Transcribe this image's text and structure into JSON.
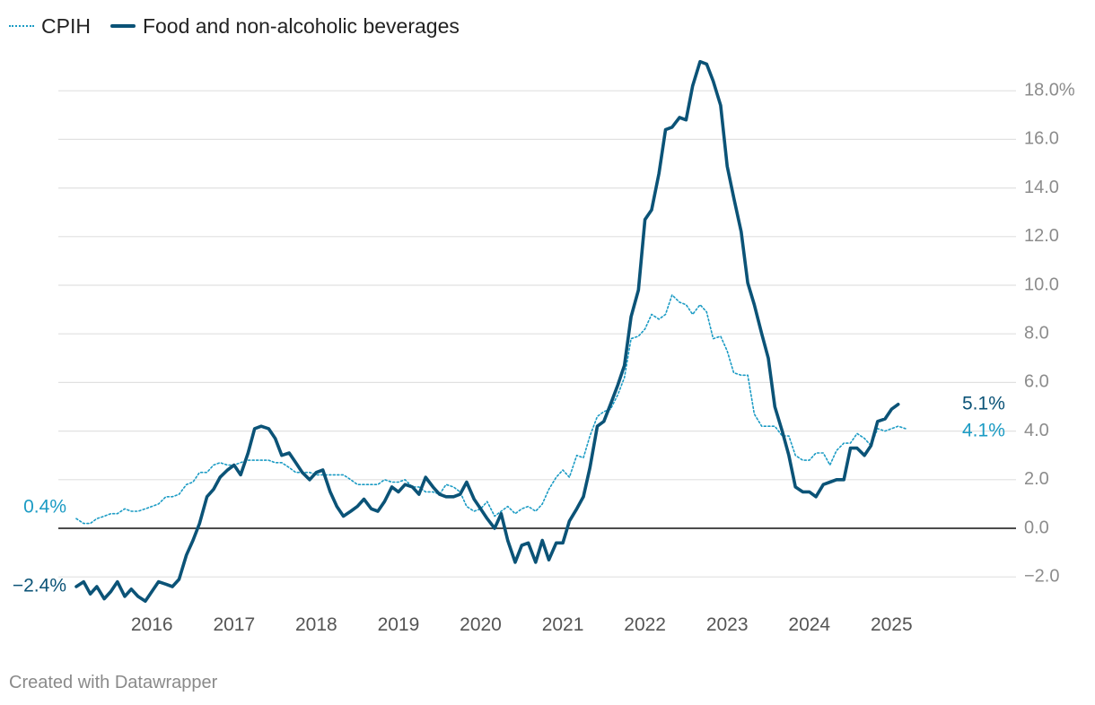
{
  "legend": [
    {
      "name": "CPIH",
      "style": "dotted",
      "color": "#1b9bc4"
    },
    {
      "name": "Food and non-alcoholic beverages",
      "style": "solid",
      "color": "#0b5377"
    }
  ],
  "credit": "Created with Datawrapper",
  "chart_data": {
    "type": "line",
    "title": "",
    "xlabel": "",
    "ylabel": "",
    "x_unit": "year",
    "xlim": [
      2015.58,
      2026.25
    ],
    "ylim": [
      -3.2,
      19.5
    ],
    "x_ticks": [
      2016,
      2017,
      2018,
      2019,
      2020,
      2021,
      2022,
      2023,
      2024,
      2025
    ],
    "x_tick_labels": [
      "2016",
      "2017",
      "2018",
      "2019",
      "2020",
      "2021",
      "2022",
      "2023",
      "2024",
      "2025"
    ],
    "y_ticks": [
      -2,
      0,
      2,
      4,
      6,
      8,
      10,
      12,
      14,
      16,
      18
    ],
    "y_tick_labels": [
      "−2.0",
      "0.0",
      "2.0",
      "4.0",
      "6.0",
      "8.0",
      "10.0",
      "12.0",
      "14.0",
      "16.0",
      "18.0%"
    ],
    "zero_line": true,
    "grid": "horizontal",
    "legend_position": "top-left",
    "series": [
      {
        "name": "CPIH",
        "style": "dotted",
        "color": "#1b9bc4",
        "start_label": "0.4%",
        "end_label": "4.1%",
        "points": [
          [
            2015.58,
            0.4
          ],
          [
            2015.67,
            0.2
          ],
          [
            2015.75,
            0.2
          ],
          [
            2015.83,
            0.4
          ],
          [
            2015.92,
            0.5
          ],
          [
            2016.0,
            0.6
          ],
          [
            2016.08,
            0.6
          ],
          [
            2016.17,
            0.8
          ],
          [
            2016.25,
            0.7
          ],
          [
            2016.33,
            0.7
          ],
          [
            2016.42,
            0.8
          ],
          [
            2016.5,
            0.9
          ],
          [
            2016.58,
            1.0
          ],
          [
            2016.67,
            1.3
          ],
          [
            2016.75,
            1.3
          ],
          [
            2016.83,
            1.4
          ],
          [
            2016.92,
            1.8
          ],
          [
            2017.0,
            1.9
          ],
          [
            2017.08,
            2.3
          ],
          [
            2017.17,
            2.3
          ],
          [
            2017.25,
            2.6
          ],
          [
            2017.33,
            2.7
          ],
          [
            2017.42,
            2.6
          ],
          [
            2017.5,
            2.6
          ],
          [
            2017.58,
            2.7
          ],
          [
            2017.67,
            2.8
          ],
          [
            2017.75,
            2.8
          ],
          [
            2017.83,
            2.8
          ],
          [
            2017.92,
            2.8
          ],
          [
            2018.0,
            2.7
          ],
          [
            2018.08,
            2.7
          ],
          [
            2018.17,
            2.5
          ],
          [
            2018.25,
            2.3
          ],
          [
            2018.33,
            2.3
          ],
          [
            2018.42,
            2.3
          ],
          [
            2018.5,
            2.2
          ],
          [
            2018.58,
            2.2
          ],
          [
            2018.67,
            2.2
          ],
          [
            2018.75,
            2.2
          ],
          [
            2018.83,
            2.2
          ],
          [
            2018.92,
            2.0
          ],
          [
            2019.0,
            1.8
          ],
          [
            2019.08,
            1.8
          ],
          [
            2019.17,
            1.8
          ],
          [
            2019.25,
            1.8
          ],
          [
            2019.33,
            2.0
          ],
          [
            2019.42,
            1.9
          ],
          [
            2019.5,
            1.9
          ],
          [
            2019.58,
            2.0
          ],
          [
            2019.67,
            1.7
          ],
          [
            2019.75,
            1.7
          ],
          [
            2019.83,
            1.5
          ],
          [
            2019.92,
            1.5
          ],
          [
            2020.0,
            1.4
          ],
          [
            2020.08,
            1.8
          ],
          [
            2020.17,
            1.7
          ],
          [
            2020.25,
            1.5
          ],
          [
            2020.33,
            0.9
          ],
          [
            2020.42,
            0.7
          ],
          [
            2020.5,
            0.8
          ],
          [
            2020.58,
            1.1
          ],
          [
            2020.67,
            0.5
          ],
          [
            2020.75,
            0.7
          ],
          [
            2020.83,
            0.9
          ],
          [
            2020.92,
            0.6
          ],
          [
            2021.0,
            0.8
          ],
          [
            2021.08,
            0.9
          ],
          [
            2021.17,
            0.7
          ],
          [
            2021.25,
            1.0
          ],
          [
            2021.33,
            1.6
          ],
          [
            2021.42,
            2.1
          ],
          [
            2021.5,
            2.4
          ],
          [
            2021.58,
            2.1
          ],
          [
            2021.67,
            3.0
          ],
          [
            2021.75,
            2.9
          ],
          [
            2021.83,
            3.8
          ],
          [
            2021.92,
            4.6
          ],
          [
            2022.0,
            4.8
          ],
          [
            2022.08,
            4.9
          ],
          [
            2022.17,
            5.5
          ],
          [
            2022.25,
            6.2
          ],
          [
            2022.33,
            7.8
          ],
          [
            2022.42,
            7.9
          ],
          [
            2022.5,
            8.2
          ],
          [
            2022.58,
            8.8
          ],
          [
            2022.67,
            8.6
          ],
          [
            2022.75,
            8.8
          ],
          [
            2022.83,
            9.6
          ],
          [
            2022.92,
            9.3
          ],
          [
            2023.0,
            9.2
          ],
          [
            2023.08,
            8.8
          ],
          [
            2023.17,
            9.2
          ],
          [
            2023.25,
            8.9
          ],
          [
            2023.33,
            7.8
          ],
          [
            2023.42,
            7.9
          ],
          [
            2023.5,
            7.3
          ],
          [
            2023.58,
            6.4
          ],
          [
            2023.67,
            6.3
          ],
          [
            2023.75,
            6.3
          ],
          [
            2023.83,
            4.7
          ],
          [
            2023.92,
            4.2
          ],
          [
            2024.0,
            4.2
          ],
          [
            2024.08,
            4.2
          ],
          [
            2024.17,
            3.8
          ],
          [
            2024.25,
            3.8
          ],
          [
            2024.33,
            3.0
          ],
          [
            2024.42,
            2.8
          ],
          [
            2024.5,
            2.8
          ],
          [
            2024.58,
            3.1
          ],
          [
            2024.67,
            3.1
          ],
          [
            2024.75,
            2.6
          ],
          [
            2024.83,
            3.2
          ],
          [
            2024.92,
            3.5
          ],
          [
            2025.0,
            3.5
          ],
          [
            2025.08,
            3.9
          ],
          [
            2025.17,
            3.7
          ],
          [
            2025.25,
            3.4
          ],
          [
            2025.33,
            4.1
          ],
          [
            2025.42,
            4.0
          ],
          [
            2025.5,
            4.1
          ],
          [
            2025.58,
            4.2
          ],
          [
            2025.67,
            4.1
          ]
        ]
      },
      {
        "name": "Food and non-alcoholic beverages",
        "style": "solid",
        "color": "#0b5377",
        "start_label": "−2.4%",
        "end_label": "5.1%",
        "points": [
          [
            2015.58,
            -2.4
          ],
          [
            2015.67,
            -2.2
          ],
          [
            2015.75,
            -2.7
          ],
          [
            2015.83,
            -2.4
          ],
          [
            2015.92,
            -2.9
          ],
          [
            2016.0,
            -2.6
          ],
          [
            2016.08,
            -2.2
          ],
          [
            2016.17,
            -2.8
          ],
          [
            2016.25,
            -2.5
          ],
          [
            2016.33,
            -2.8
          ],
          [
            2016.42,
            -3.0
          ],
          [
            2016.5,
            -2.6
          ],
          [
            2016.58,
            -2.2
          ],
          [
            2016.67,
            -2.3
          ],
          [
            2016.75,
            -2.4
          ],
          [
            2016.83,
            -2.1
          ],
          [
            2016.92,
            -1.1
          ],
          [
            2017.0,
            -0.5
          ],
          [
            2017.08,
            0.2
          ],
          [
            2017.17,
            1.3
          ],
          [
            2017.25,
            1.6
          ],
          [
            2017.33,
            2.1
          ],
          [
            2017.42,
            2.4
          ],
          [
            2017.5,
            2.6
          ],
          [
            2017.58,
            2.2
          ],
          [
            2017.67,
            3.1
          ],
          [
            2017.75,
            4.1
          ],
          [
            2017.83,
            4.2
          ],
          [
            2017.92,
            4.1
          ],
          [
            2018.0,
            3.7
          ],
          [
            2018.08,
            3.0
          ],
          [
            2018.17,
            3.1
          ],
          [
            2018.25,
            2.7
          ],
          [
            2018.33,
            2.3
          ],
          [
            2018.42,
            2.0
          ],
          [
            2018.5,
            2.3
          ],
          [
            2018.58,
            2.4
          ],
          [
            2018.67,
            1.5
          ],
          [
            2018.75,
            0.9
          ],
          [
            2018.83,
            0.5
          ],
          [
            2018.92,
            0.7
          ],
          [
            2019.0,
            0.9
          ],
          [
            2019.08,
            1.2
          ],
          [
            2019.17,
            0.8
          ],
          [
            2019.25,
            0.7
          ],
          [
            2019.33,
            1.1
          ],
          [
            2019.42,
            1.7
          ],
          [
            2019.5,
            1.5
          ],
          [
            2019.58,
            1.8
          ],
          [
            2019.67,
            1.7
          ],
          [
            2019.75,
            1.4
          ],
          [
            2019.83,
            2.1
          ],
          [
            2019.92,
            1.7
          ],
          [
            2020.0,
            1.4
          ],
          [
            2020.08,
            1.3
          ],
          [
            2020.17,
            1.3
          ],
          [
            2020.25,
            1.4
          ],
          [
            2020.33,
            1.9
          ],
          [
            2020.42,
            1.2
          ],
          [
            2020.5,
            0.8
          ],
          [
            2020.58,
            0.4
          ],
          [
            2020.67,
            0.0
          ],
          [
            2020.75,
            0.6
          ],
          [
            2020.83,
            -0.5
          ],
          [
            2020.92,
            -1.4
          ],
          [
            2021.0,
            -0.7
          ],
          [
            2021.08,
            -0.6
          ],
          [
            2021.17,
            -1.4
          ],
          [
            2021.25,
            -0.5
          ],
          [
            2021.33,
            -1.3
          ],
          [
            2021.42,
            -0.6
          ],
          [
            2021.5,
            -0.6
          ],
          [
            2021.58,
            0.3
          ],
          [
            2021.67,
            0.8
          ],
          [
            2021.75,
            1.3
          ],
          [
            2021.83,
            2.5
          ],
          [
            2021.92,
            4.2
          ],
          [
            2022.0,
            4.4
          ],
          [
            2022.08,
            5.1
          ],
          [
            2022.17,
            5.9
          ],
          [
            2022.25,
            6.7
          ],
          [
            2022.33,
            8.7
          ],
          [
            2022.42,
            9.8
          ],
          [
            2022.5,
            12.7
          ],
          [
            2022.58,
            13.1
          ],
          [
            2022.67,
            14.6
          ],
          [
            2022.75,
            16.4
          ],
          [
            2022.83,
            16.5
          ],
          [
            2022.92,
            16.9
          ],
          [
            2023.0,
            16.8
          ],
          [
            2023.08,
            18.2
          ],
          [
            2023.17,
            19.2
          ],
          [
            2023.25,
            19.1
          ],
          [
            2023.33,
            18.4
          ],
          [
            2023.42,
            17.4
          ],
          [
            2023.5,
            14.9
          ],
          [
            2023.58,
            13.6
          ],
          [
            2023.67,
            12.2
          ],
          [
            2023.75,
            10.1
          ],
          [
            2023.83,
            9.2
          ],
          [
            2023.92,
            8.0
          ],
          [
            2024.0,
            7.0
          ],
          [
            2024.08,
            5.0
          ],
          [
            2024.17,
            4.0
          ],
          [
            2024.25,
            3.0
          ],
          [
            2024.33,
            1.7
          ],
          [
            2024.42,
            1.5
          ],
          [
            2024.5,
            1.5
          ],
          [
            2024.58,
            1.3
          ],
          [
            2024.67,
            1.8
          ],
          [
            2024.75,
            1.9
          ],
          [
            2024.83,
            2.0
          ],
          [
            2024.92,
            2.0
          ],
          [
            2025.0,
            3.3
          ],
          [
            2025.08,
            3.3
          ],
          [
            2025.17,
            3.0
          ],
          [
            2025.25,
            3.4
          ],
          [
            2025.33,
            4.4
          ],
          [
            2025.42,
            4.5
          ],
          [
            2025.5,
            4.9
          ],
          [
            2025.58,
            5.1
          ]
        ]
      }
    ]
  }
}
